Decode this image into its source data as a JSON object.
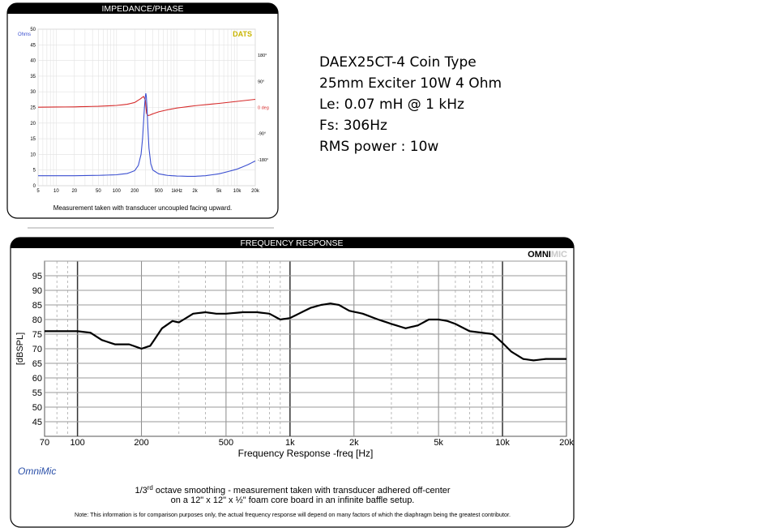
{
  "impedance_panel": {
    "header": "IMPEDANCE/PHASE",
    "logo": "DATS",
    "caption": "Measurement taken with transducer uncoupled facing upward."
  },
  "specs": {
    "lines": [
      "DAEX25CT-4 Coin Type",
      "25mm Exciter 10W 4 Ohm",
      "Le: 0.07 mH @ 1 kHz",
      "Fs: 306Hz",
      "RMS power : 10w"
    ]
  },
  "frequency_panel": {
    "header": "FREQUENCY RESPONSE",
    "logo_bold": "OMNI",
    "logo_light": "MIC",
    "brand": "OmniMic",
    "caption_line1_pre": "1/3",
    "caption_line1_sup": "rd",
    "caption_line1_post": " octave smoothing - measurement taken with transducer adhered off-center",
    "caption_line2": "on a 12\" x 12\" x ½\" foam core board in an infinite baffle setup.",
    "note": "Note: This information is for comparison purposes only, the actual frequency response will depend on many factors of which the diaphragm being the greatest contributor."
  },
  "colors": {
    "impedance": "#3b4fd0",
    "phase": "#d62a2a",
    "response": "#000000",
    "dats_logo": "#c8b400",
    "omnimic_brand": "#2a4fa8",
    "header_bg": "#000000",
    "header_text": "#ffffff"
  },
  "chart_data": [
    {
      "type": "line",
      "title": "IMPEDANCE/PHASE",
      "xscale": "log",
      "xlim": [
        5,
        20000
      ],
      "ylim": [
        0,
        50
      ],
      "y2lim": [
        -270,
        270
      ],
      "yunit": "Ohms",
      "y2unit": "deg",
      "x_tick_labels": [
        "5",
        "10",
        "20",
        "50",
        "100",
        "200",
        "500",
        "1kHz",
        "2k",
        "5k",
        "10k",
        "20k"
      ],
      "x_tick_values": [
        5,
        10,
        20,
        50,
        100,
        200,
        500,
        1000,
        2000,
        5000,
        10000,
        20000
      ],
      "y_tick_labels": [
        "0",
        "5",
        "10",
        "15",
        "20",
        "25",
        "30",
        "35",
        "40",
        "45",
        "50"
      ],
      "y2_tick_labels": [
        "180°",
        "90°",
        "0 deg",
        "-90°",
        "-180°"
      ],
      "y2_tick_values": [
        180,
        90,
        0,
        -90,
        -180
      ],
      "grid": true,
      "series": [
        {
          "axis": "left",
          "x": [
            5,
            20,
            50,
            100,
            150,
            200,
            230,
            255,
            270,
            280,
            290,
            300,
            306,
            312,
            320,
            330,
            345,
            370,
            400,
            500,
            700,
            1000,
            1500,
            2000,
            3000,
            5000,
            7000,
            10000,
            15000,
            20000
          ],
          "values": [
            3.2,
            3.2,
            3.3,
            3.5,
            3.9,
            4.8,
            6.5,
            10,
            15,
            20,
            25,
            28.5,
            29.5,
            28.5,
            25,
            19,
            12,
            7,
            5,
            3.8,
            3.3,
            3.1,
            3.0,
            3.0,
            3.2,
            3.8,
            4.5,
            5.3,
            6.7,
            7.9
          ]
        },
        {
          "axis": "right",
          "x": [
            5,
            20,
            50,
            100,
            150,
            200,
            250,
            280,
            300,
            306,
            315,
            330,
            350,
            400,
            500,
            700,
            1000,
            2000,
            5000,
            10000,
            20000
          ],
          "values": [
            1,
            2,
            4,
            7,
            11,
            17,
            30,
            38,
            26,
            5,
            -20,
            -28,
            -27,
            -22,
            -15,
            -8,
            -2,
            6,
            14,
            21,
            28
          ]
        }
      ]
    },
    {
      "type": "line",
      "title": "FREQUENCY RESPONSE",
      "xlabel": "Frequency Response -freq [Hz]",
      "ylabel": "[dBSPL]",
      "xscale": "log",
      "xlim": [
        70,
        20000
      ],
      "ylim": [
        40,
        100
      ],
      "x_tick_labels": [
        "70",
        "100",
        "200",
        "500",
        "1k",
        "2k",
        "5k",
        "10k",
        "20k"
      ],
      "x_tick_values": [
        70,
        100,
        200,
        500,
        1000,
        2000,
        5000,
        10000,
        20000
      ],
      "y_tick_labels": [
        "45",
        "50",
        "55",
        "60",
        "65",
        "70",
        "75",
        "80",
        "85",
        "90",
        "95"
      ],
      "y_tick_values": [
        45,
        50,
        55,
        60,
        65,
        70,
        75,
        80,
        85,
        90,
        95
      ],
      "grid": true,
      "series": [
        {
          "x": [
            70,
            80,
            100,
            115,
            130,
            150,
            175,
            200,
            220,
            250,
            280,
            300,
            350,
            400,
            450,
            500,
            600,
            700,
            800,
            900,
            1000,
            1100,
            1250,
            1400,
            1550,
            1700,
            1900,
            2200,
            2600,
            3000,
            3500,
            4000,
            4500,
            5000,
            5500,
            6000,
            7000,
            8000,
            9000,
            10000,
            11000,
            12500,
            14000,
            16000,
            18000,
            20000
          ],
          "values": [
            76,
            76,
            76,
            75.5,
            73,
            71.5,
            71.5,
            70,
            71,
            77,
            79.5,
            79,
            82,
            82.5,
            82,
            82,
            82.5,
            82.5,
            82,
            80,
            80.5,
            82,
            84,
            85,
            85.5,
            85,
            83,
            82,
            80,
            78.5,
            77,
            78,
            80,
            80,
            79.5,
            78.5,
            76,
            75.5,
            75,
            72,
            69,
            66.5,
            66,
            66.5,
            66.5,
            66.5
          ]
        }
      ]
    }
  ]
}
